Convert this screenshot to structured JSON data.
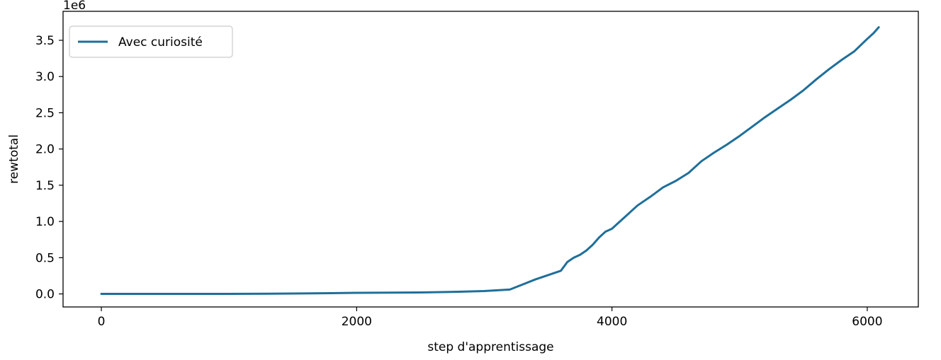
{
  "chart_data": {
    "type": "line",
    "xlabel": "step d'apprentissage",
    "ylabel": "rewtotal",
    "y_offset_label": "1e6",
    "xlim": [
      -300,
      6400
    ],
    "ylim": [
      -0.18,
      3.9
    ],
    "xticks": [
      0,
      2000,
      4000,
      6000
    ],
    "xtick_labels": [
      "0",
      "2000",
      "4000",
      "6000"
    ],
    "yticks": [
      0.0,
      0.5,
      1.0,
      1.5,
      2.0,
      2.5,
      3.0,
      3.5
    ],
    "ytick_labels": [
      "0.0",
      "0.5",
      "1.0",
      "1.5",
      "2.0",
      "2.5",
      "3.0",
      "3.5"
    ],
    "grid": false,
    "legend_position": "top-left",
    "series": [
      {
        "name": "Avec curiosité",
        "color": "#1f6f9a",
        "x": [
          0,
          500,
          1000,
          1500,
          1800,
          2000,
          2500,
          2800,
          3000,
          3200,
          3300,
          3400,
          3500,
          3600,
          3650,
          3700,
          3750,
          3800,
          3850,
          3900,
          3950,
          4000,
          4050,
          4100,
          4200,
          4300,
          4400,
          4500,
          4600,
          4700,
          4800,
          4900,
          5000,
          5100,
          5200,
          5300,
          5400,
          5500,
          5600,
          5700,
          5800,
          5900,
          6000,
          6050,
          6090
        ],
        "y": [
          0.0,
          0.0,
          0.0,
          0.005,
          0.01,
          0.015,
          0.02,
          0.03,
          0.04,
          0.06,
          0.13,
          0.2,
          0.26,
          0.32,
          0.44,
          0.5,
          0.54,
          0.6,
          0.68,
          0.78,
          0.86,
          0.9,
          0.98,
          1.06,
          1.22,
          1.34,
          1.47,
          1.56,
          1.67,
          1.83,
          1.95,
          2.06,
          2.18,
          2.31,
          2.44,
          2.56,
          2.68,
          2.81,
          2.96,
          3.1,
          3.23,
          3.35,
          3.52,
          3.6,
          3.68
        ]
      }
    ]
  }
}
